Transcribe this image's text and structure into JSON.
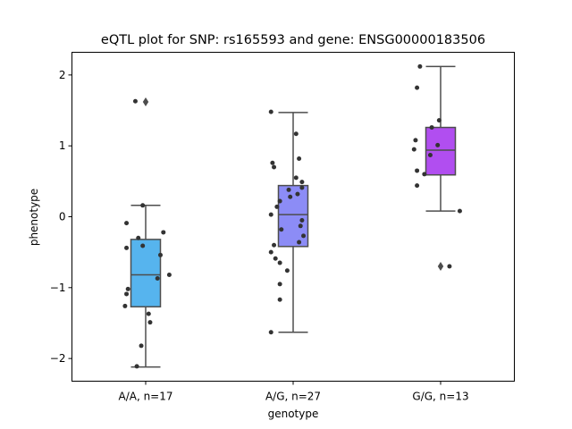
{
  "chart_data": {
    "type": "box",
    "title": "eQTL plot for SNP: rs165593 and gene: ENSG00000183506",
    "xlabel": "genotype",
    "ylabel": "phenotype",
    "ylim": [
      -2.32,
      2.32
    ],
    "yticks": [
      -2,
      -1,
      0,
      1,
      2
    ],
    "grid": false,
    "categories": [
      "A/A, n=17",
      "A/G, n=27",
      "G/G, n=13"
    ],
    "boxes": [
      {
        "category": "A/A, n=17",
        "color": "#56b4ee",
        "q1": -1.27,
        "median": -0.82,
        "q3": -0.32,
        "whisker_low": -2.12,
        "whisker_high": 0.16,
        "outliers": [
          1.62
        ]
      },
      {
        "category": "A/G, n=27",
        "color": "#8c8cf6",
        "q1": -0.42,
        "median": 0.03,
        "q3": 0.44,
        "whisker_low": -1.63,
        "whisker_high": 1.47,
        "outliers": []
      },
      {
        "category": "G/G, n=13",
        "color": "#b14ef0",
        "q1": 0.59,
        "median": 0.94,
        "q3": 1.26,
        "whisker_low": 0.08,
        "whisker_high": 2.12,
        "outliers": [
          -0.7
        ]
      }
    ],
    "points": [
      {
        "group": 0,
        "dx": -0.07,
        "y": 1.63
      },
      {
        "group": 0,
        "dx": -0.02,
        "y": 0.16
      },
      {
        "group": 0,
        "dx": 0.12,
        "y": -0.22
      },
      {
        "group": 0,
        "dx": -0.13,
        "y": -0.09
      },
      {
        "group": 0,
        "dx": -0.05,
        "y": -0.3
      },
      {
        "group": 0,
        "dx": -0.13,
        "y": -0.44
      },
      {
        "group": 0,
        "dx": 0.1,
        "y": -0.54
      },
      {
        "group": 0,
        "dx": 0.16,
        "y": -0.82
      },
      {
        "group": 0,
        "dx": 0.08,
        "y": -0.87
      },
      {
        "group": 0,
        "dx": -0.12,
        "y": -1.02
      },
      {
        "group": 0,
        "dx": -0.13,
        "y": -1.09
      },
      {
        "group": 0,
        "dx": -0.14,
        "y": -1.26
      },
      {
        "group": 0,
        "dx": 0.02,
        "y": -1.37
      },
      {
        "group": 0,
        "dx": 0.03,
        "y": -1.49
      },
      {
        "group": 0,
        "dx": -0.03,
        "y": -1.82
      },
      {
        "group": 0,
        "dx": -0.06,
        "y": -2.11
      },
      {
        "group": 0,
        "dx": -0.02,
        "y": -0.41
      },
      {
        "group": 1,
        "dx": -0.15,
        "y": 1.48
      },
      {
        "group": 1,
        "dx": 0.02,
        "y": 1.17
      },
      {
        "group": 1,
        "dx": 0.04,
        "y": 0.82
      },
      {
        "group": 1,
        "dx": -0.14,
        "y": 0.76
      },
      {
        "group": 1,
        "dx": -0.13,
        "y": 0.7
      },
      {
        "group": 1,
        "dx": 0.02,
        "y": 0.55
      },
      {
        "group": 1,
        "dx": 0.06,
        "y": 0.49
      },
      {
        "group": 1,
        "dx": 0.06,
        "y": 0.41
      },
      {
        "group": 1,
        "dx": -0.03,
        "y": 0.38
      },
      {
        "group": 1,
        "dx": 0.03,
        "y": 0.32
      },
      {
        "group": 1,
        "dx": -0.02,
        "y": 0.28
      },
      {
        "group": 1,
        "dx": -0.09,
        "y": 0.22
      },
      {
        "group": 1,
        "dx": -0.11,
        "y": 0.14
      },
      {
        "group": 1,
        "dx": -0.15,
        "y": 0.03
      },
      {
        "group": 1,
        "dx": 0.06,
        "y": -0.05
      },
      {
        "group": 1,
        "dx": 0.05,
        "y": -0.13
      },
      {
        "group": 1,
        "dx": -0.08,
        "y": -0.18
      },
      {
        "group": 1,
        "dx": 0.07,
        "y": -0.27
      },
      {
        "group": 1,
        "dx": 0.04,
        "y": -0.36
      },
      {
        "group": 1,
        "dx": -0.15,
        "y": -0.5
      },
      {
        "group": 1,
        "dx": -0.12,
        "y": -0.59
      },
      {
        "group": 1,
        "dx": -0.09,
        "y": -0.65
      },
      {
        "group": 1,
        "dx": -0.04,
        "y": -0.76
      },
      {
        "group": 1,
        "dx": -0.09,
        "y": -0.95
      },
      {
        "group": 1,
        "dx": -0.09,
        "y": -1.17
      },
      {
        "group": 1,
        "dx": -0.15,
        "y": -1.63
      },
      {
        "group": 1,
        "dx": -0.13,
        "y": -0.4
      },
      {
        "group": 2,
        "dx": -0.14,
        "y": 2.12
      },
      {
        "group": 2,
        "dx": -0.16,
        "y": 1.82
      },
      {
        "group": 2,
        "dx": -0.01,
        "y": 1.36
      },
      {
        "group": 2,
        "dx": -0.06,
        "y": 1.26
      },
      {
        "group": 2,
        "dx": -0.17,
        "y": 1.08
      },
      {
        "group": 2,
        "dx": -0.02,
        "y": 1.01
      },
      {
        "group": 2,
        "dx": -0.07,
        "y": 0.87
      },
      {
        "group": 2,
        "dx": -0.16,
        "y": 0.65
      },
      {
        "group": 2,
        "dx": -0.11,
        "y": 0.6
      },
      {
        "group": 2,
        "dx": -0.16,
        "y": 0.44
      },
      {
        "group": 2,
        "dx": 0.13,
        "y": 0.08
      },
      {
        "group": 2,
        "dx": 0.06,
        "y": -0.7
      },
      {
        "group": 2,
        "dx": -0.18,
        "y": 0.95
      }
    ]
  }
}
